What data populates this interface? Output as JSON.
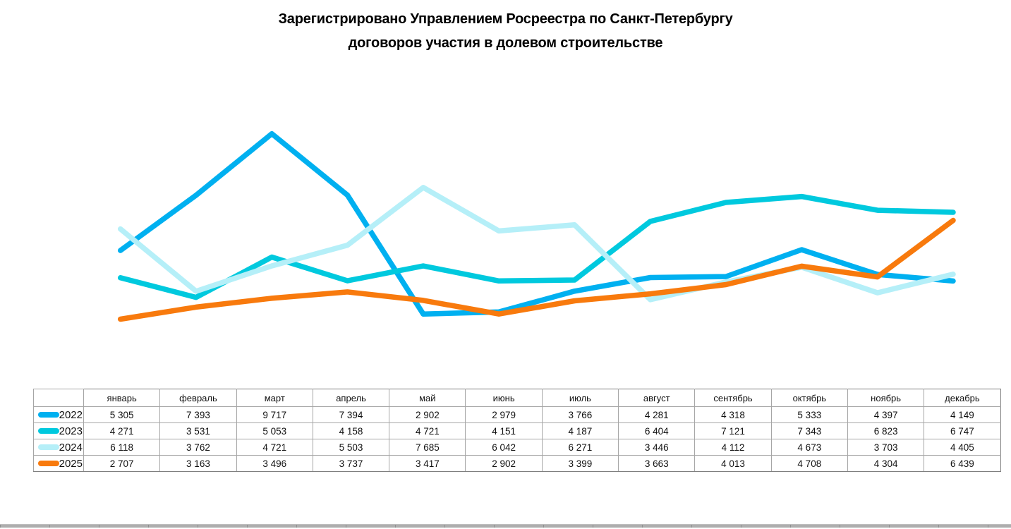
{
  "title": {
    "line1": "Зарегистрировано Управлением Росреестра по Санкт-Петербургу",
    "line2": "договоров участия  в долевом строительстве"
  },
  "chart_data": {
    "type": "line",
    "title": "Зарегистрировано Управлением Росреестра по Санкт-Петербургу договоров участия в долевом строительстве",
    "xlabel": "",
    "ylabel": "",
    "categories": [
      "январь",
      "февраль",
      "март",
      "апрель",
      "май",
      "июнь",
      "июль",
      "август",
      "сентябрь",
      "октябрь",
      "ноябрь",
      "декабрь"
    ],
    "series": [
      {
        "name": "2022",
        "color": "#00B0F0",
        "values": [
          5305,
          7393,
          9717,
          7394,
          2902,
          2979,
          3766,
          4281,
          4318,
          5333,
          4397,
          4149
        ]
      },
      {
        "name": "2023",
        "color": "#00C9DE",
        "values": [
          4271,
          3531,
          5053,
          4158,
          4721,
          4151,
          4187,
          6404,
          7121,
          7343,
          6823,
          6747
        ]
      },
      {
        "name": "2024",
        "color": "#B5EFF8",
        "values": [
          6118,
          3762,
          4721,
          5503,
          7685,
          6042,
          6271,
          3446,
          4112,
          4673,
          3703,
          4405
        ]
      },
      {
        "name": "2025",
        "color": "#F87A0D",
        "values": [
          2707,
          3163,
          3496,
          3737,
          3417,
          2902,
          3399,
          3663,
          4013,
          4708,
          4304,
          6439
        ]
      }
    ],
    "ylim": [
      2000,
      10000
    ],
    "grid": false,
    "axes_visible": false,
    "legend_position": "table-first-column",
    "number_format": "space-thousands"
  }
}
